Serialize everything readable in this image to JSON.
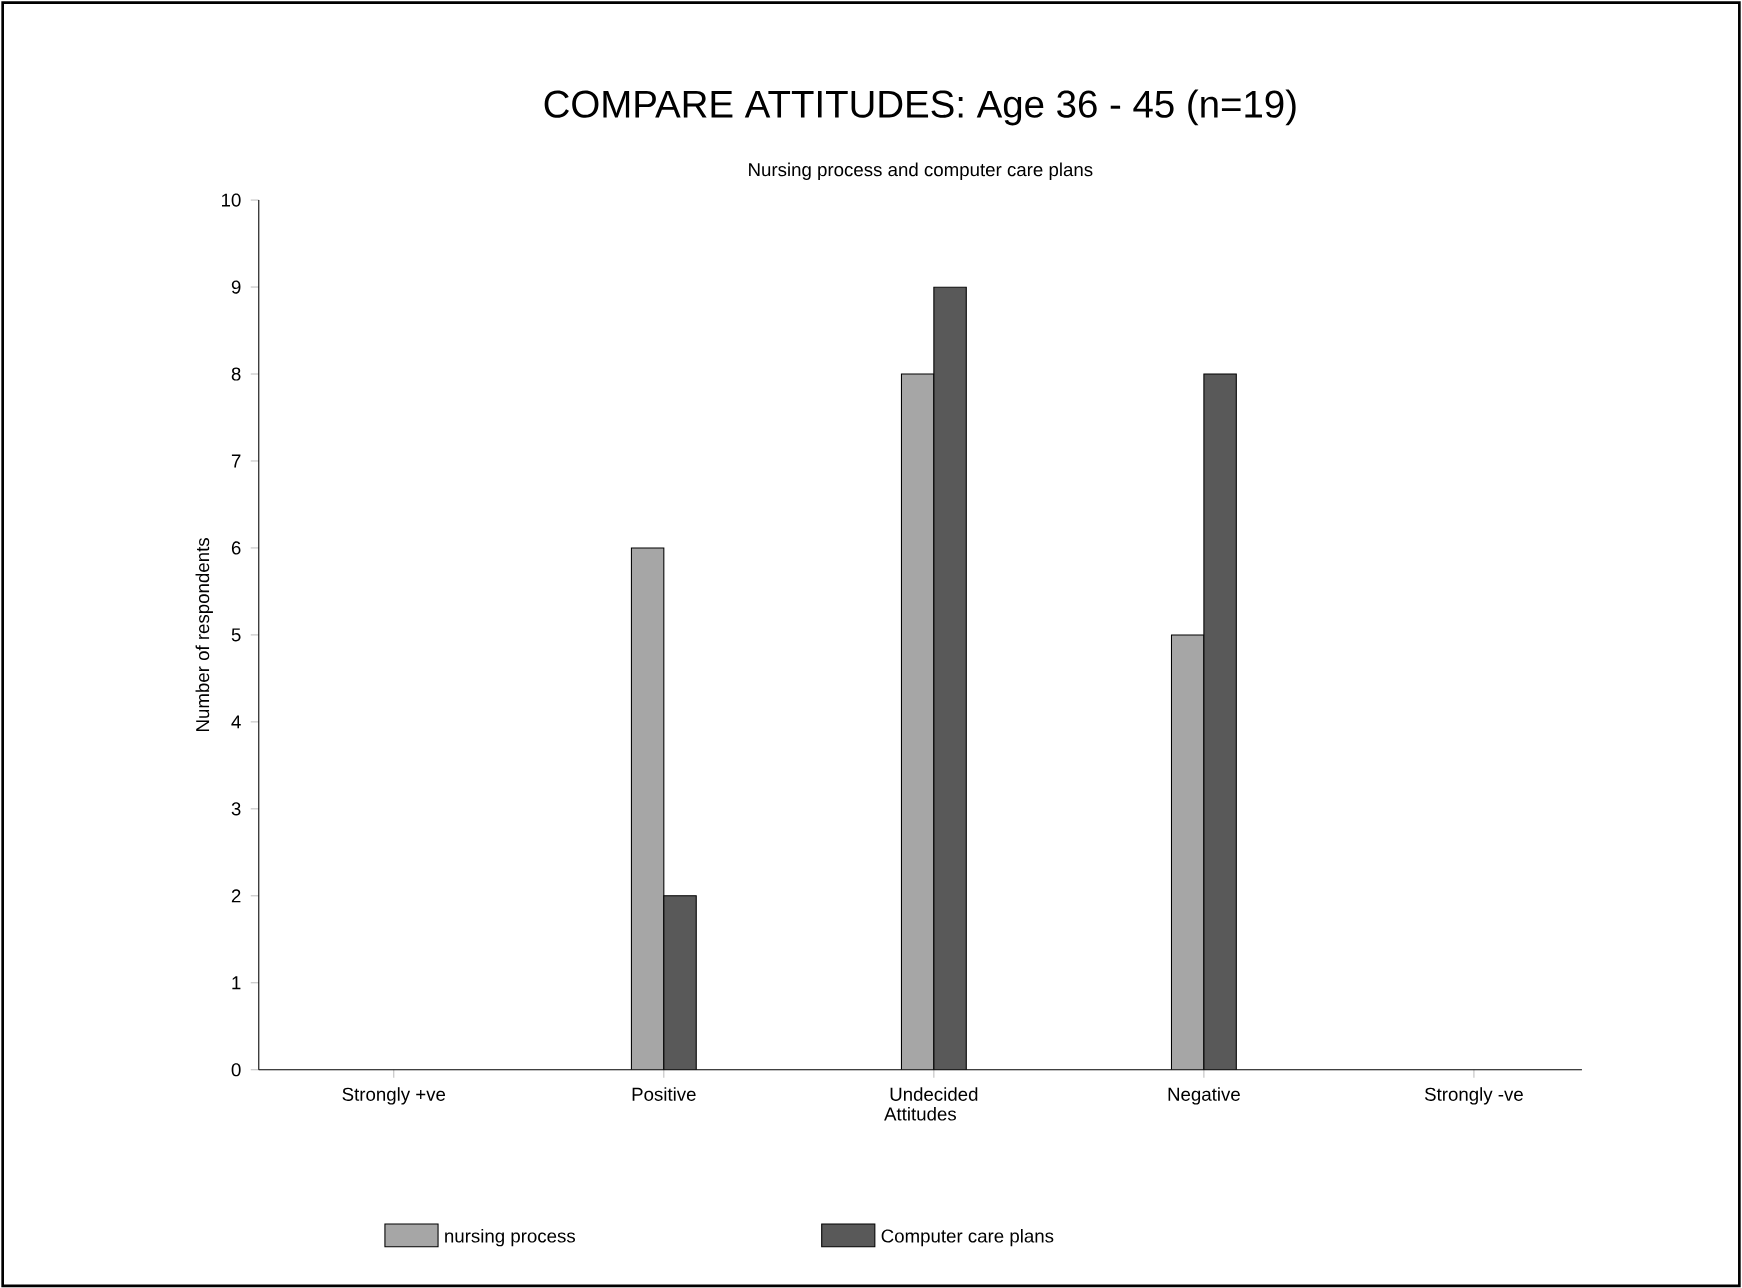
{
  "chart_data": {
    "type": "bar",
    "title": "COMPARE ATTITUDES: Age 36 - 45 (n=19)",
    "subtitle": "Nursing process and computer care plans",
    "xlabel": "Attitudes",
    "ylabel": "Number of respondents",
    "categories": [
      "Strongly +ve",
      "Positive",
      "Undecided",
      "Negative",
      "Strongly -ve"
    ],
    "series": [
      {
        "name": "nursing process",
        "color": "#a6a6a6",
        "values": [
          0,
          6,
          8,
          5,
          0
        ]
      },
      {
        "name": "Computer care plans",
        "color": "#595959",
        "values": [
          0,
          2,
          9,
          8,
          0
        ]
      }
    ],
    "ylim": [
      0,
      10
    ],
    "yticks": [
      0,
      1,
      2,
      3,
      4,
      5,
      6,
      7,
      8,
      9,
      10
    ],
    "grid": false,
    "legend": "bottom"
  }
}
